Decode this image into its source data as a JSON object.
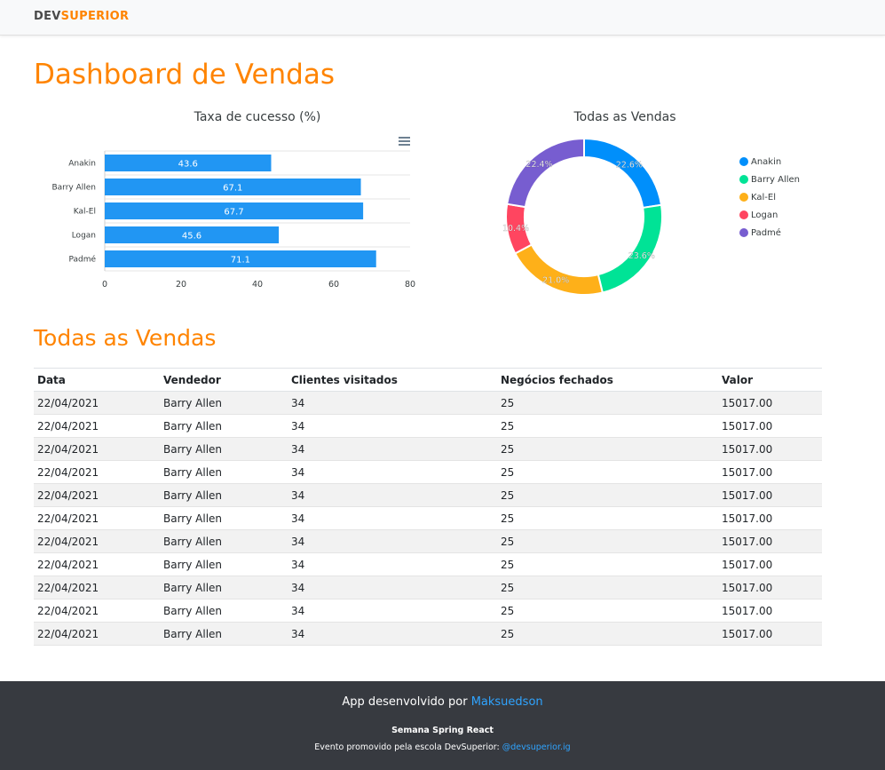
{
  "navbar": {
    "logo_dev": "DEV",
    "logo_superior": "SUPERIOR"
  },
  "page_title": "Dashboard de Vendas",
  "colors": {
    "accent": "#ff8400",
    "bar": "#2196f3",
    "footer_bg": "#373a40",
    "link": "#2fa4ff"
  },
  "chart_data": [
    {
      "type": "bar",
      "orientation": "horizontal",
      "title": "Taxa de cucesso (%)",
      "categories": [
        "Anakin",
        "Barry Allen",
        "Kal-El",
        "Logan",
        "Padmé"
      ],
      "values": [
        43.6,
        67.1,
        67.7,
        45.6,
        71.1
      ],
      "data_labels": [
        "43.6",
        "67.1",
        "67.7",
        "45.6",
        "71.1"
      ],
      "xlim": [
        0,
        80
      ],
      "xticks": [
        "0",
        "20",
        "40",
        "60",
        "80"
      ],
      "grid": true,
      "color": "#2196f3"
    },
    {
      "type": "pie",
      "variant": "donut",
      "title": "Todas as Vendas",
      "labels": [
        "Anakin",
        "Barry Allen",
        "Kal-El",
        "Logan",
        "Padmé"
      ],
      "values": [
        22.6,
        23.6,
        21.0,
        10.4,
        22.4
      ],
      "data_labels": [
        "22.6%",
        "23.6%",
        "21.0%",
        "10.4%",
        "22.4%"
      ],
      "colors": [
        "#008ffb",
        "#00e396",
        "#feb019",
        "#ff4560",
        "#775dd0"
      ],
      "legend": "right"
    }
  ],
  "menu_icon": "hamburger-menu-icon",
  "sales_table": {
    "title": "Todas as Vendas",
    "headers": [
      "Data",
      "Vendedor",
      "Clientes visitados",
      "Negócios fechados",
      "Valor"
    ],
    "rows": [
      [
        "22/04/2021",
        "Barry Allen",
        "34",
        "25",
        "15017.00"
      ],
      [
        "22/04/2021",
        "Barry Allen",
        "34",
        "25",
        "15017.00"
      ],
      [
        "22/04/2021",
        "Barry Allen",
        "34",
        "25",
        "15017.00"
      ],
      [
        "22/04/2021",
        "Barry Allen",
        "34",
        "25",
        "15017.00"
      ],
      [
        "22/04/2021",
        "Barry Allen",
        "34",
        "25",
        "15017.00"
      ],
      [
        "22/04/2021",
        "Barry Allen",
        "34",
        "25",
        "15017.00"
      ],
      [
        "22/04/2021",
        "Barry Allen",
        "34",
        "25",
        "15017.00"
      ],
      [
        "22/04/2021",
        "Barry Allen",
        "34",
        "25",
        "15017.00"
      ],
      [
        "22/04/2021",
        "Barry Allen",
        "34",
        "25",
        "15017.00"
      ],
      [
        "22/04/2021",
        "Barry Allen",
        "34",
        "25",
        "15017.00"
      ],
      [
        "22/04/2021",
        "Barry Allen",
        "34",
        "25",
        "15017.00"
      ]
    ]
  },
  "footer": {
    "developed_by": "App desenvolvido por ",
    "author_link": "Maksuedson",
    "event_name": "Semana Spring React",
    "promoted_by": "Evento promovido pela escola DevSuperior: ",
    "instagram_link": "@devsuperior.ig"
  }
}
